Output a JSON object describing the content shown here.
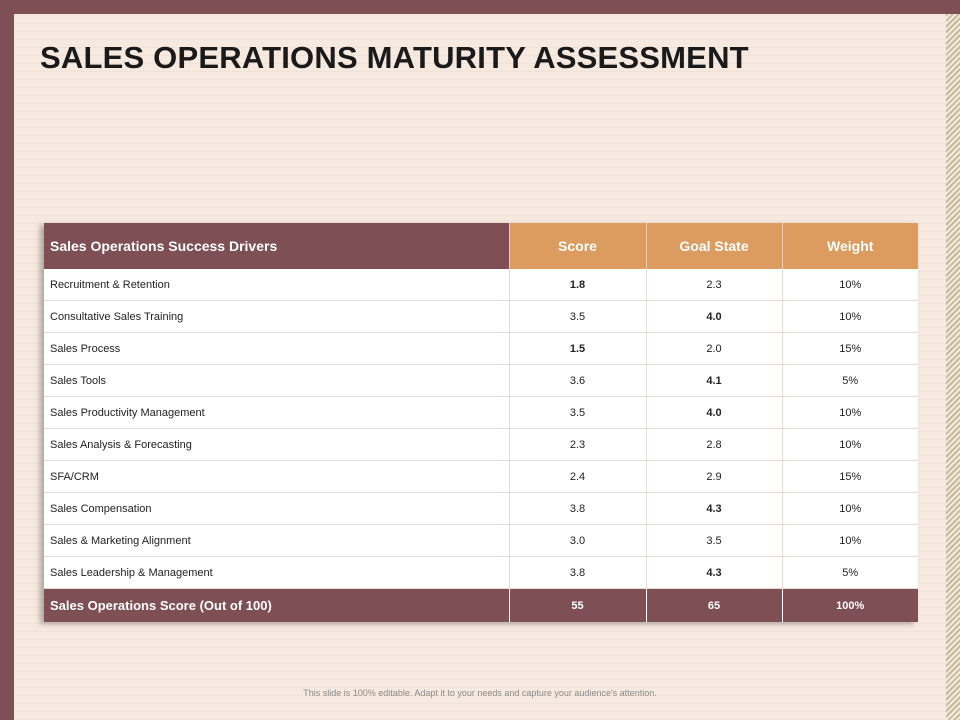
{
  "slide": {
    "title": "SALES OPERATIONS MATURITY ASSESSMENT",
    "footer_note": "This slide is 100% editable. Adapt it to your needs and capture your audience's attention."
  },
  "colors": {
    "accent_maroon": "#7e4f55",
    "accent_orange": "#dc9c5f",
    "background": "#f6e9df"
  },
  "table": {
    "headers": {
      "driver": "Sales Operations Success Drivers",
      "score": "Score",
      "goal_state": "Goal State",
      "weight": "Weight"
    },
    "rows": [
      {
        "driver": "Recruitment & Retention",
        "score": "1.8",
        "goal_state": "2.3",
        "weight": "10%"
      },
      {
        "driver": "Consultative Sales Training",
        "score": "3.5",
        "goal_state": "4.0",
        "weight": "10%"
      },
      {
        "driver": "Sales Process",
        "score": "1.5",
        "goal_state": "2.0",
        "weight": "15%"
      },
      {
        "driver": "Sales Tools",
        "score": "3.6",
        "goal_state": "4.1",
        "weight": "5%"
      },
      {
        "driver": "Sales Productivity Management",
        "score": "3.5",
        "goal_state": "4.0",
        "weight": "10%"
      },
      {
        "driver": "Sales Analysis & Forecasting",
        "score": "2.3",
        "goal_state": "2.8",
        "weight": "10%"
      },
      {
        "driver": "SFA/CRM",
        "score": "2.4",
        "goal_state": "2.9",
        "weight": "15%"
      },
      {
        "driver": "Sales Compensation",
        "score": "3.8",
        "goal_state": "4.3",
        "weight": "10%"
      },
      {
        "driver": "Sales & Marketing Alignment",
        "score": "3.0",
        "goal_state": "3.5",
        "weight": "10%"
      },
      {
        "driver": "Sales Leadership & Management",
        "score": "3.8",
        "goal_state": "4.3",
        "weight": "5%"
      }
    ],
    "total": {
      "label": "Sales Operations Score (Out of 100)",
      "score": "55",
      "goal_state": "65",
      "weight": "100%"
    }
  }
}
